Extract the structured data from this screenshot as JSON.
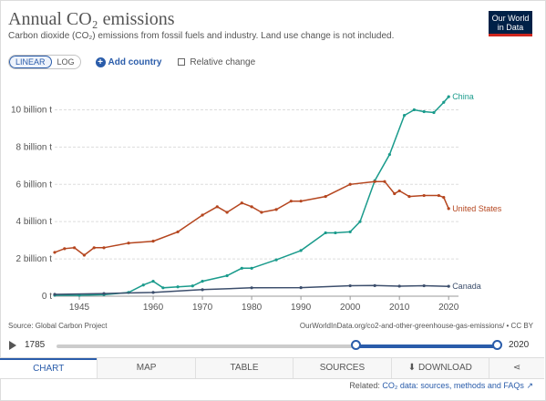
{
  "header": {
    "title": "Annual CO₂ emissions",
    "subtitle": "Carbon dioxide (CO₂) emissions from fossil fuels and industry. Land use change is not included.",
    "logo_line1": "Our World",
    "logo_line2": "in Data"
  },
  "controls": {
    "linear_label": "LINEAR",
    "log_label": "LOG",
    "add_country_label": "Add country",
    "relative_change_label": "Relative change"
  },
  "colors": {
    "china": "#1a9b8c",
    "us": "#b5461f",
    "canada": "#3c4e6c",
    "accent": "#2a5caa"
  },
  "chart_data": {
    "type": "line",
    "xlim": [
      1940,
      2022
    ],
    "ylim": [
      0,
      11
    ],
    "y_tick_values": [
      0,
      2,
      4,
      6,
      8,
      10
    ],
    "y_tick_labels": [
      "0 t",
      "2 billion t",
      "4 billion t",
      "6 billion t",
      "8 billion t",
      "10 billion t"
    ],
    "x_tick_values": [
      1945,
      1960,
      1970,
      1980,
      1990,
      2000,
      2010,
      2020
    ],
    "x_tick_labels": [
      "1945",
      "1960",
      "1970",
      "1980",
      "1990",
      "2000",
      "2010",
      "2020"
    ],
    "grid": "horizontal",
    "legend": "line-end labels",
    "series": [
      {
        "name": "China",
        "color": "#1a9b8c",
        "x": [
          1940,
          1945,
          1950,
          1955,
          1958,
          1960,
          1962,
          1965,
          1968,
          1970,
          1975,
          1978,
          1980,
          1985,
          1990,
          1995,
          1997,
          2000,
          2002,
          2005,
          2008,
          2011,
          2013,
          2015,
          2017,
          2019,
          2020
        ],
        "y": [
          0.05,
          0.05,
          0.08,
          0.2,
          0.6,
          0.8,
          0.45,
          0.5,
          0.55,
          0.8,
          1.1,
          1.5,
          1.5,
          1.95,
          2.45,
          3.4,
          3.4,
          3.45,
          4.0,
          6.2,
          7.6,
          9.7,
          10.0,
          9.9,
          9.85,
          10.4,
          10.7
        ]
      },
      {
        "name": "United States",
        "color": "#b5461f",
        "x": [
          1940,
          1942,
          1944,
          1946,
          1948,
          1950,
          1955,
          1960,
          1965,
          1970,
          1973,
          1975,
          1978,
          1980,
          1982,
          1985,
          1988,
          1990,
          1995,
          2000,
          2005,
          2007,
          2009,
          2010,
          2012,
          2015,
          2018,
          2019,
          2020
        ],
        "y": [
          2.35,
          2.55,
          2.6,
          2.2,
          2.6,
          2.6,
          2.85,
          2.95,
          3.45,
          4.35,
          4.8,
          4.5,
          5.0,
          4.8,
          4.5,
          4.65,
          5.1,
          5.1,
          5.35,
          6.0,
          6.15,
          6.15,
          5.5,
          5.65,
          5.35,
          5.4,
          5.4,
          5.3,
          4.7
        ]
      },
      {
        "name": "Canada",
        "color": "#3c4e6c",
        "x": [
          1940,
          1950,
          1960,
          1970,
          1980,
          1990,
          2000,
          2005,
          2010,
          2015,
          2020
        ],
        "y": [
          0.1,
          0.14,
          0.2,
          0.35,
          0.45,
          0.46,
          0.56,
          0.57,
          0.54,
          0.56,
          0.53
        ]
      }
    ]
  },
  "source": {
    "left": "Source: Global Carbon Project",
    "right": "OurWorldInData.org/co2-and-other-greenhouse-gas-emissions/ • CC BY"
  },
  "timeline": {
    "start": "1785",
    "end": "2020"
  },
  "tabs": [
    "CHART",
    "MAP",
    "TABLE",
    "SOURCES",
    "DOWNLOAD"
  ],
  "related": {
    "prefix": "Related:",
    "link": "CO₂ data: sources, methods and FAQs"
  }
}
